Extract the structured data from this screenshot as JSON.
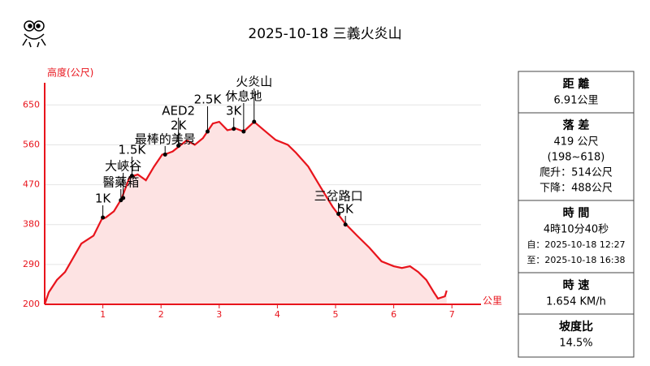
{
  "chart_data": {
    "type": "area",
    "title": "2025-10-18 三義火炎山",
    "y_label": "高度(公尺)",
    "x_label": "公里",
    "x": [
      0,
      0.07,
      0.21,
      0.35,
      0.63,
      0.84,
      0.98,
      1.05,
      1.19,
      1.32,
      1.46,
      1.6,
      1.74,
      1.88,
      2.02,
      2.1,
      2.2,
      2.44,
      2.58,
      2.72,
      2.89,
      3.0,
      3.14,
      3.28,
      3.42,
      3.6,
      3.77,
      3.97,
      4.18,
      4.32,
      4.53,
      4.74,
      4.95,
      5.16,
      5.37,
      5.58,
      5.79,
      6.0,
      6.14,
      6.28,
      6.42,
      6.56,
      6.69,
      6.76,
      6.88,
      6.91
    ],
    "values": [
      200,
      227,
      255,
      273,
      337,
      355,
      392,
      396,
      410,
      438,
      487,
      493,
      480,
      511,
      538,
      540,
      545,
      570,
      560,
      575,
      608,
      612,
      593,
      597,
      590,
      612,
      593,
      571,
      560,
      542,
      511,
      465,
      420,
      383,
      355,
      328,
      297,
      286,
      282,
      286,
      273,
      255,
      227,
      213,
      218,
      231
    ],
    "color": "#e8141c",
    "fill": "#fde3e3",
    "xlim": [
      0,
      7.5
    ],
    "xticks": [
      1,
      2,
      3,
      4,
      5,
      6,
      7
    ],
    "ylim": [
      200,
      700
    ],
    "yticks": [
      200,
      290,
      380,
      470,
      560,
      650
    ],
    "grid": true,
    "annotations": [
      {
        "label": "1K",
        "x": 1.0,
        "y": 396
      },
      {
        "label": "醫藥箱",
        "x": 1.31,
        "y": 435
      },
      {
        "label": "大峽谷",
        "x": 1.35,
        "y": 440
      },
      {
        "label": "1.5K",
        "x": 1.5,
        "y": 490
      },
      {
        "label": "最棒的美景",
        "x": 2.07,
        "y": 538
      },
      {
        "label": "2K",
        "x": 2.3,
        "y": 558
      },
      {
        "label": "AED2",
        "x": 2.3,
        "y": 558
      },
      {
        "label": "2.5K",
        "x": 2.8,
        "y": 590
      },
      {
        "label": "3K",
        "x": 3.25,
        "y": 596
      },
      {
        "label": "休息地",
        "x": 3.42,
        "y": 590
      },
      {
        "label": "火炎山",
        "x": 3.6,
        "y": 612
      },
      {
        "label": "三岔路口",
        "x": 5.05,
        "y": 404
      },
      {
        "label": "5K",
        "x": 5.17,
        "y": 380
      }
    ]
  },
  "stats": [
    {
      "head": "距 離",
      "lines": [
        "6.91公里"
      ]
    },
    {
      "head": "落 差",
      "lines": [
        "419 公尺",
        "(198~618)",
        "爬升：514公尺",
        "下降：488公尺"
      ]
    },
    {
      "head": "時 間",
      "lines": [
        "4時10分40秒",
        "自：2025-10-18 12:27",
        "至：2025-10-18 16:38"
      ]
    },
    {
      "head": "時 速",
      "lines": [
        "1.654 KM/h"
      ]
    },
    {
      "head": "坡度比",
      "lines": [
        "14.5%"
      ]
    }
  ]
}
